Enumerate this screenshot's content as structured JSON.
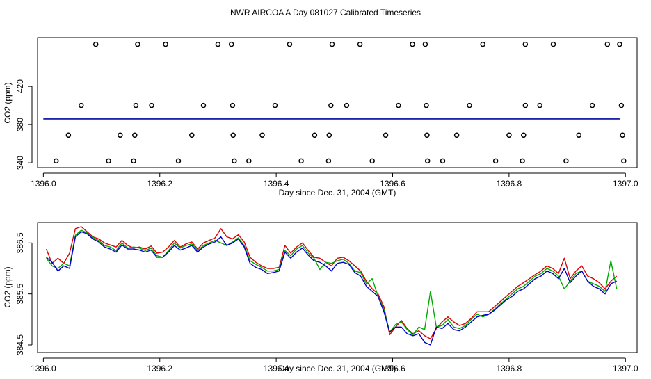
{
  "title": "NWR AIRCOA A  Day 081027  Calibrated Timeseries",
  "chart_data": [
    {
      "type": "scatter",
      "xlabel": "Day since Dec. 31, 2004 (GMT)",
      "ylabel": "CO2 (ppm)",
      "xlim": [
        1395.99,
        1397.02
      ],
      "ylim": [
        335,
        471
      ],
      "xticks": [
        1396.0,
        1396.2,
        1396.4,
        1396.6,
        1396.8,
        1397.0
      ],
      "xtick_labels": [
        "1396.0",
        "1396.2",
        "1396.4",
        "1396.6",
        "1396.8",
        "1397.0"
      ],
      "yticks": [
        340,
        380,
        420
      ],
      "ytick_labels": [
        "340",
        "380",
        "420"
      ],
      "grid": false,
      "points": {
        "x": [
          1396.09,
          1396.162,
          1396.21,
          1396.3,
          1396.323,
          1396.423,
          1396.496,
          1396.544,
          1396.634,
          1396.656,
          1396.755,
          1396.828,
          1396.876,
          1396.969,
          1396.99,
          1396.065,
          1396.159,
          1396.186,
          1396.275,
          1396.325,
          1396.398,
          1396.494,
          1396.521,
          1396.61,
          1396.658,
          1396.732,
          1396.828,
          1396.853,
          1396.943,
          1396.993,
          1396.043,
          1396.132,
          1396.157,
          1396.255,
          1396.326,
          1396.376,
          1396.466,
          1396.491,
          1396.588,
          1396.659,
          1396.71,
          1396.8,
          1396.825,
          1396.92,
          1396.995,
          1396.022,
          1396.112,
          1396.155,
          1396.232,
          1396.328,
          1396.353,
          1396.443,
          1396.49,
          1396.565,
          1396.66,
          1396.686,
          1396.777,
          1396.823,
          1396.898,
          1396.997
        ],
        "y": [
          464,
          464,
          464,
          464,
          464,
          464,
          464,
          464,
          464,
          464,
          464,
          464,
          464,
          464,
          464,
          400,
          400,
          400,
          400,
          400,
          400,
          400,
          400,
          400,
          400,
          400,
          400,
          400,
          400,
          400,
          369,
          369,
          369,
          369,
          369,
          369,
          369,
          369,
          369,
          369,
          369,
          369,
          369,
          369,
          369,
          342,
          342,
          342,
          342,
          342,
          342,
          342,
          342,
          342,
          342,
          342,
          342,
          342,
          342,
          342
        ]
      },
      "series": [
        {
          "color": "#dd0000",
          "x": [
            1396.0,
            1396.2,
            1396.4,
            1396.6,
            1396.8,
            1396.99
          ],
          "y": [
            386,
            386,
            386,
            386,
            386,
            386
          ]
        },
        {
          "color": "#00aa00",
          "x": [
            1396.0,
            1396.2,
            1396.4,
            1396.6,
            1396.8,
            1396.99
          ],
          "y": [
            386,
            386,
            386,
            386,
            386,
            386
          ]
        },
        {
          "color": "#0000cc",
          "x": [
            1396.0,
            1396.2,
            1396.4,
            1396.6,
            1396.8,
            1396.99
          ],
          "y": [
            386,
            386,
            386,
            386,
            386,
            386
          ]
        }
      ]
    },
    {
      "type": "line",
      "xlabel": "Day since Dec. 31, 2004 (GMT)",
      "ylabel": "CO2 (ppm)",
      "xlim": [
        1395.99,
        1397.02
      ],
      "ylim": [
        384.35,
        386.9
      ],
      "xticks": [
        1396.0,
        1396.2,
        1396.4,
        1396.6,
        1396.8,
        1397.0
      ],
      "xtick_labels": [
        "1396.0",
        "1396.2",
        "1396.4",
        "1396.6",
        "1396.8",
        "1397.0"
      ],
      "yticks": [
        384.5,
        385.5,
        386.5
      ],
      "ytick_labels": [
        "384.5",
        "385.5",
        "386.5"
      ],
      "grid": false,
      "x": [
        1396.005,
        1396.015,
        1396.025,
        1396.035,
        1396.045,
        1396.055,
        1396.065,
        1396.075,
        1396.085,
        1396.095,
        1396.105,
        1396.115,
        1396.125,
        1396.135,
        1396.145,
        1396.155,
        1396.165,
        1396.175,
        1396.185,
        1396.195,
        1396.205,
        1396.215,
        1396.225,
        1396.235,
        1396.245,
        1396.255,
        1396.265,
        1396.275,
        1396.285,
        1396.295,
        1396.305,
        1396.315,
        1396.325,
        1396.335,
        1396.345,
        1396.355,
        1396.365,
        1396.375,
        1396.385,
        1396.395,
        1396.405,
        1396.415,
        1396.425,
        1396.435,
        1396.445,
        1396.455,
        1396.465,
        1396.475,
        1396.485,
        1396.495,
        1396.505,
        1396.515,
        1396.525,
        1396.535,
        1396.545,
        1396.555,
        1396.565,
        1396.575,
        1396.585,
        1396.595,
        1396.605,
        1396.615,
        1396.625,
        1396.635,
        1396.645,
        1396.655,
        1396.665,
        1396.675,
        1396.685,
        1396.695,
        1396.705,
        1396.715,
        1396.725,
        1396.735,
        1396.745,
        1396.755,
        1396.765,
        1396.775,
        1396.785,
        1396.795,
        1396.805,
        1396.815,
        1396.825,
        1396.835,
        1396.845,
        1396.855,
        1396.865,
        1396.875,
        1396.885,
        1396.895,
        1396.905,
        1396.915,
        1396.925,
        1396.935,
        1396.945,
        1396.955,
        1396.965,
        1396.975,
        1396.985
      ],
      "series": [
        {
          "color": "#dd0000",
          "values": [
            386.38,
            386.1,
            386.2,
            386.1,
            386.3,
            386.78,
            386.82,
            386.72,
            386.62,
            386.58,
            386.5,
            386.46,
            386.42,
            386.55,
            386.45,
            386.4,
            386.42,
            386.38,
            386.44,
            386.3,
            386.32,
            386.42,
            386.55,
            386.42,
            386.48,
            386.52,
            386.38,
            386.5,
            386.55,
            386.6,
            386.78,
            386.62,
            386.58,
            386.66,
            386.52,
            386.22,
            386.12,
            386.05,
            386.0,
            386.0,
            386.02,
            386.45,
            386.3,
            386.42,
            386.5,
            386.35,
            386.22,
            386.2,
            386.12,
            386.05,
            386.2,
            386.22,
            386.15,
            386.05,
            385.95,
            385.75,
            385.6,
            385.5,
            385.25,
            384.7,
            384.85,
            384.98,
            384.82,
            384.72,
            384.78,
            384.68,
            384.62,
            384.82,
            384.95,
            385.05,
            384.95,
            384.88,
            384.92,
            385.02,
            385.15,
            385.15,
            385.15,
            385.25,
            385.35,
            385.45,
            385.55,
            385.65,
            385.72,
            385.8,
            385.88,
            385.95,
            386.05,
            386.0,
            385.9,
            386.2,
            385.8,
            385.95,
            386.05,
            385.85,
            385.8,
            385.72,
            385.6,
            385.75,
            385.85
          ]
        },
        {
          "color": "#00aa00",
          "values": [
            386.2,
            386.05,
            386.0,
            386.1,
            386.05,
            386.65,
            386.75,
            386.7,
            386.6,
            386.55,
            386.45,
            386.42,
            386.35,
            386.5,
            386.4,
            386.42,
            386.4,
            386.35,
            386.4,
            386.25,
            386.22,
            386.35,
            386.5,
            386.4,
            386.45,
            386.48,
            386.35,
            386.45,
            386.5,
            386.55,
            386.5,
            386.45,
            386.52,
            386.6,
            386.45,
            386.15,
            386.08,
            386.02,
            385.95,
            385.95,
            385.98,
            386.35,
            386.25,
            386.38,
            386.45,
            386.3,
            386.2,
            385.98,
            386.12,
            386.1,
            386.15,
            386.18,
            386.1,
            385.95,
            385.92,
            385.7,
            385.8,
            385.45,
            385.2,
            384.75,
            384.9,
            384.95,
            384.8,
            384.7,
            384.85,
            384.8,
            385.55,
            384.85,
            384.88,
            385.0,
            384.85,
            384.82,
            384.88,
            385.0,
            385.1,
            385.05,
            385.1,
            385.2,
            385.3,
            385.4,
            385.5,
            385.6,
            385.65,
            385.75,
            385.85,
            385.9,
            386.0,
            385.95,
            385.85,
            385.6,
            385.75,
            385.9,
            385.95,
            385.75,
            385.7,
            385.65,
            385.55,
            386.15,
            385.6
          ]
        },
        {
          "color": "#0000cc",
          "values": [
            386.22,
            386.12,
            385.95,
            386.05,
            386.0,
            386.62,
            386.72,
            386.68,
            386.58,
            386.52,
            386.42,
            386.38,
            386.32,
            386.46,
            386.38,
            386.38,
            386.36,
            386.32,
            386.36,
            386.22,
            386.22,
            386.32,
            386.45,
            386.36,
            386.4,
            386.45,
            386.32,
            386.42,
            386.48,
            386.52,
            386.62,
            386.45,
            386.5,
            386.58,
            386.42,
            386.1,
            386.02,
            385.98,
            385.9,
            385.92,
            385.95,
            386.32,
            386.2,
            386.32,
            386.4,
            386.26,
            386.15,
            386.12,
            386.05,
            385.95,
            386.1,
            386.12,
            386.08,
            385.92,
            385.85,
            385.65,
            385.55,
            385.45,
            385.15,
            384.75,
            384.85,
            384.85,
            384.72,
            384.68,
            384.72,
            384.55,
            384.5,
            384.85,
            384.82,
            384.92,
            384.8,
            384.78,
            384.85,
            384.95,
            385.05,
            385.08,
            385.1,
            385.18,
            385.28,
            385.38,
            385.45,
            385.55,
            385.6,
            385.7,
            385.8,
            385.85,
            385.95,
            385.9,
            385.8,
            386.0,
            385.72,
            385.85,
            385.95,
            385.75,
            385.65,
            385.6,
            385.5,
            385.7,
            385.75
          ]
        }
      ]
    }
  ]
}
